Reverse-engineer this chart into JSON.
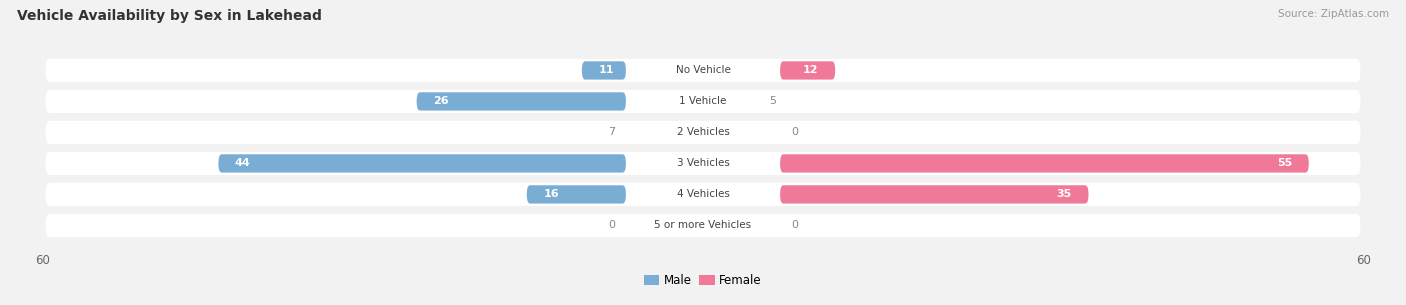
{
  "title": "Vehicle Availability by Sex in Lakehead",
  "source": "Source: ZipAtlas.com",
  "categories": [
    "No Vehicle",
    "1 Vehicle",
    "2 Vehicles",
    "3 Vehicles",
    "4 Vehicles",
    "5 or more Vehicles"
  ],
  "male_values": [
    11,
    26,
    7,
    44,
    16,
    0
  ],
  "female_values": [
    12,
    5,
    0,
    55,
    35,
    0
  ],
  "male_color": "#7aadd4",
  "female_color": "#f07898",
  "male_color_light": "#aac8e8",
  "female_color_light": "#f4aabb",
  "axis_limit": 60,
  "background_color": "#f2f2f2",
  "row_bg_color": "#ffffff",
  "label_color_dark": "#888888",
  "label_color_inside": "#ffffff",
  "center_label_color": "#444444",
  "title_color": "#333333",
  "source_color": "#999999"
}
